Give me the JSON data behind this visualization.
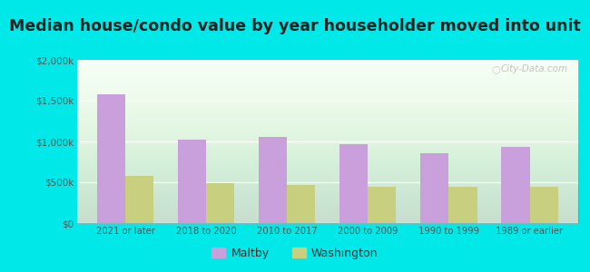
{
  "title": "Median house/condo value by year householder moved into unit",
  "categories": [
    "2021 or later",
    "2018 to 2020",
    "2010 to 2017",
    "2000 to 2009",
    "1990 to 1999",
    "1989 or earlier"
  ],
  "maltby_values": [
    1580000,
    1020000,
    1060000,
    970000,
    860000,
    930000
  ],
  "washington_values": [
    580000,
    490000,
    470000,
    450000,
    440000,
    440000
  ],
  "maltby_color": "#c9a0dc",
  "washington_color": "#c8cf7e",
  "background_outer": "#00e8e8",
  "title_fontsize": 12.5,
  "legend_maltby": "Maltby",
  "legend_washington": "Washington",
  "ylim": [
    0,
    2000000
  ],
  "yticks": [
    0,
    500000,
    1000000,
    1500000,
    2000000
  ],
  "ytick_labels": [
    "$0",
    "$500k",
    "$1,000k",
    "$1,500k",
    "$2,000k"
  ],
  "watermark": "City-Data.com",
  "bar_width": 0.35
}
